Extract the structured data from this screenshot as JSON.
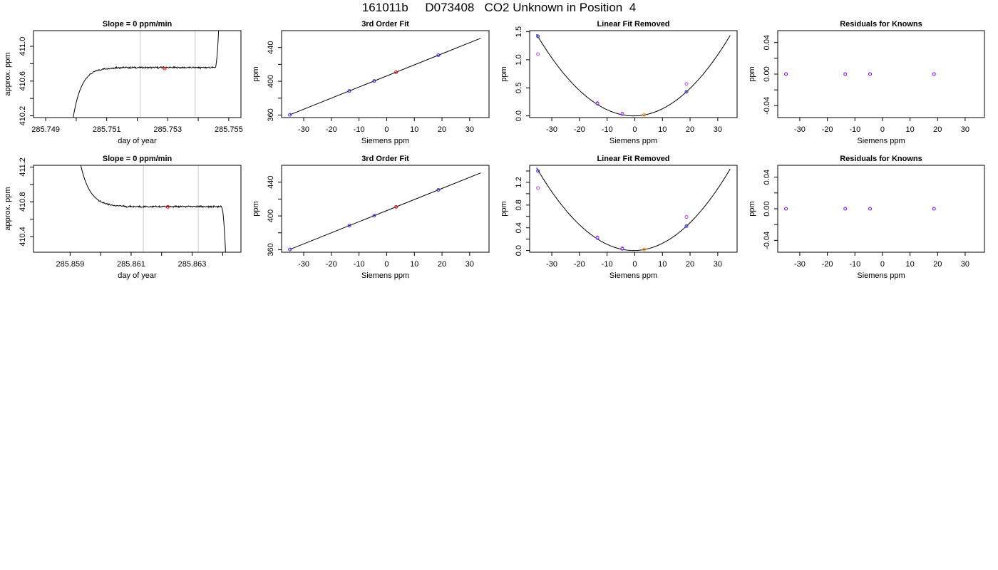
{
  "title": "161011b     D073408   CO2 Unknown in Position  4",
  "colors": {
    "blue": "#2b2bff",
    "red": "#ff0000",
    "orange": "#ff8c00",
    "magenta": "#cc44ee",
    "purple": "#7a00ff",
    "gray": "#c8c8c8",
    "line": "#000000"
  },
  "chart_data": [
    {
      "type": "line",
      "title": "Slope =  0  ppm/min",
      "xlabel": "day of year",
      "ylabel": "approx. ppm",
      "xlim": [
        285.7486,
        285.7554
      ],
      "ylim": [
        410.18,
        411.18
      ],
      "xticks": [
        285.749,
        285.75,
        285.751,
        285.752,
        285.753,
        285.754,
        285.755
      ],
      "xtick_labels": [
        "285.749",
        "",
        "285.751",
        "",
        "285.753",
        "",
        "285.755"
      ],
      "yticks": [
        410.2,
        410.4,
        410.6,
        410.8,
        411.0
      ],
      "ytick_labels": [
        "410.2",
        "",
        "410.6",
        "",
        "411.0"
      ],
      "vlines": [
        285.7521,
        285.7539
      ],
      "trace": {
        "x_start": 285.7499,
        "x_end": 285.7547,
        "rise_start": 410.18,
        "plateau": 410.755,
        "rise_len": 0.00045,
        "noise": 0.008,
        "end_rise_from": 285.75455,
        "end_value": 411.5
      },
      "marker": {
        "x": 285.7529,
        "y": 410.745,
        "color": "red"
      }
    },
    {
      "type": "scatter",
      "title": "3rd Order Fit",
      "xlabel": "Siemens ppm",
      "ylabel": "ppm",
      "xlim": [
        -38,
        37
      ],
      "ylim": [
        357,
        460
      ],
      "xticks": [
        -30,
        -20,
        -10,
        0,
        10,
        20,
        30
      ],
      "xtick_labels": [
        "-30",
        "-20",
        "-10",
        "0",
        "10",
        "20",
        "30"
      ],
      "yticks": [
        360,
        380,
        400,
        420,
        440
      ],
      "ytick_labels": [
        "360",
        "",
        "400",
        "",
        "440"
      ],
      "fit_line": {
        "x": [
          -35,
          34
        ],
        "y": [
          360.3,
          451.0
        ]
      },
      "points": [
        {
          "x": -35.0,
          "y": 360.3,
          "color": "blue"
        },
        {
          "x": -13.5,
          "y": 388.6,
          "color": "blue"
        },
        {
          "x": -4.5,
          "y": 400.4,
          "color": "blue"
        },
        {
          "x": 18.7,
          "y": 430.9,
          "color": "blue"
        },
        {
          "x": 3.4,
          "y": 410.75,
          "color": "red"
        }
      ]
    },
    {
      "type": "scatter",
      "title": "Linear Fit Removed",
      "xlabel": "Siemens ppm",
      "ylabel": "ppm",
      "xlim": [
        -38,
        37
      ],
      "ylim": [
        -0.03,
        1.52
      ],
      "xticks": [
        -30,
        -20,
        -10,
        0,
        10,
        20,
        30
      ],
      "xtick_labels": [
        "-30",
        "-20",
        "-10",
        "0",
        "10",
        "20",
        "30"
      ],
      "yticks": [
        0.0,
        0.5,
        1.0,
        1.5
      ],
      "ytick_labels": [
        "0.0",
        "0.5",
        "1.0",
        "1.5"
      ],
      "curve": {
        "a": 0.00118,
        "b": 0.0009,
        "c": 0.0,
        "x_from": -35.5,
        "x_to": 34.5
      },
      "points": [
        {
          "x": -35.0,
          "y": 1.42,
          "color": "blue"
        },
        {
          "x": -13.5,
          "y": 0.22,
          "color": "blue"
        },
        {
          "x": -4.5,
          "y": 0.03,
          "color": "blue"
        },
        {
          "x": 18.7,
          "y": 0.43,
          "color": "blue"
        },
        {
          "x": -35.0,
          "y": 1.1,
          "color": "magenta"
        },
        {
          "x": -13.5,
          "y": 0.23,
          "color": "magenta"
        },
        {
          "x": -4.5,
          "y": 0.04,
          "color": "magenta"
        },
        {
          "x": 18.7,
          "y": 0.57,
          "color": "magenta"
        },
        {
          "x": 3.4,
          "y": 0.02,
          "color": "orange"
        }
      ]
    },
    {
      "type": "scatter",
      "title": "Residuals for Knowns",
      "xlabel": "Siemens ppm",
      "ylabel": "ppm",
      "xlim": [
        -38,
        37
      ],
      "ylim": [
        -0.055,
        0.055
      ],
      "xticks": [
        -30,
        -20,
        -10,
        0,
        10,
        20,
        30
      ],
      "xtick_labels": [
        "-30",
        "-20",
        "-10",
        "0",
        "10",
        "20",
        "30"
      ],
      "yticks": [
        -0.04,
        -0.02,
        0.0,
        0.02,
        0.04
      ],
      "ytick_labels": [
        "-0.04",
        "",
        "0.00",
        "",
        "0.04"
      ],
      "points": [
        {
          "x": -35.0,
          "y": 0.0,
          "color": "purple"
        },
        {
          "x": -13.5,
          "y": 0.0,
          "color": "purple"
        },
        {
          "x": -4.5,
          "y": 0.0,
          "color": "purple"
        },
        {
          "x": 18.7,
          "y": 0.0,
          "color": "purple"
        }
      ]
    },
    {
      "type": "line",
      "title": "Slope =  0  ppm/min",
      "xlabel": "day of year",
      "ylabel": "approx. ppm",
      "xlim": [
        285.8578,
        285.8646
      ],
      "ylim": [
        410.22,
        411.22
      ],
      "xticks": [
        285.859,
        285.86,
        285.861,
        285.862,
        285.863,
        285.864
      ],
      "xtick_labels": [
        "285.859",
        "",
        "285.861",
        "",
        "285.863",
        ""
      ],
      "yticks": [
        410.4,
        410.6,
        410.8,
        411.0,
        411.2
      ],
      "ytick_labels": [
        "410.4",
        "",
        "410.8",
        "",
        "411.2"
      ],
      "vlines": [
        285.8614,
        285.8632
      ],
      "trace": {
        "x_start": 285.8593,
        "x_end": 285.8641,
        "fall_start": 411.3,
        "plateau": 410.745,
        "fall_len": 0.0005,
        "noise": 0.008,
        "end_fall_from": 285.86395,
        "end_value": 410.18
      },
      "marker": {
        "x": 285.8622,
        "y": 410.742,
        "color": "red"
      }
    },
    {
      "type": "scatter",
      "title": "3rd Order Fit",
      "xlabel": "Siemens ppm",
      "ylabel": "ppm",
      "xlim": [
        -38,
        37
      ],
      "ylim": [
        357,
        460
      ],
      "xticks": [
        -30,
        -20,
        -10,
        0,
        10,
        20,
        30
      ],
      "xtick_labels": [
        "-30",
        "-20",
        "-10",
        "0",
        "10",
        "20",
        "30"
      ],
      "yticks": [
        360,
        380,
        400,
        420,
        440
      ],
      "ytick_labels": [
        "360",
        "",
        "400",
        "",
        "440"
      ],
      "fit_line": {
        "x": [
          -35,
          34
        ],
        "y": [
          360.3,
          451.0
        ]
      },
      "points": [
        {
          "x": -35.0,
          "y": 360.3,
          "color": "blue"
        },
        {
          "x": -13.5,
          "y": 388.6,
          "color": "blue"
        },
        {
          "x": -4.5,
          "y": 400.4,
          "color": "blue"
        },
        {
          "x": 18.7,
          "y": 430.9,
          "color": "blue"
        },
        {
          "x": 3.4,
          "y": 410.74,
          "color": "red"
        }
      ]
    },
    {
      "type": "scatter",
      "title": "Linear Fit Removed",
      "xlabel": "Siemens ppm",
      "ylabel": "ppm",
      "xlim": [
        -38,
        37
      ],
      "ylim": [
        -0.03,
        1.5
      ],
      "xticks": [
        -30,
        -20,
        -10,
        0,
        10,
        20,
        30
      ],
      "xtick_labels": [
        "-30",
        "-20",
        "-10",
        "0",
        "10",
        "20",
        "30"
      ],
      "yticks": [
        0.0,
        0.2,
        0.4,
        0.6,
        0.8,
        1.0,
        1.2,
        1.4
      ],
      "ytick_labels": [
        "0.0",
        "",
        "0.4",
        "",
        "0.8",
        "",
        "1.2",
        ""
      ],
      "curve": {
        "a": 0.00118,
        "b": 0.0009,
        "c": 0.0,
        "x_from": -35.5,
        "x_to": 34.5
      },
      "points": [
        {
          "x": -35.0,
          "y": 1.4,
          "color": "blue"
        },
        {
          "x": -13.5,
          "y": 0.22,
          "color": "blue"
        },
        {
          "x": -4.5,
          "y": 0.03,
          "color": "blue"
        },
        {
          "x": 18.7,
          "y": 0.43,
          "color": "blue"
        },
        {
          "x": -35.0,
          "y": 1.1,
          "color": "magenta"
        },
        {
          "x": -13.5,
          "y": 0.23,
          "color": "magenta"
        },
        {
          "x": -4.5,
          "y": 0.04,
          "color": "magenta"
        },
        {
          "x": 18.7,
          "y": 0.59,
          "color": "magenta"
        },
        {
          "x": 3.4,
          "y": 0.02,
          "color": "orange"
        }
      ]
    },
    {
      "type": "scatter",
      "title": "Residuals for Knowns",
      "xlabel": "Siemens ppm",
      "ylabel": "ppm",
      "xlim": [
        -38,
        37
      ],
      "ylim": [
        -0.055,
        0.055
      ],
      "xticks": [
        -30,
        -20,
        -10,
        0,
        10,
        20,
        30
      ],
      "xtick_labels": [
        "-30",
        "-20",
        "-10",
        "0",
        "10",
        "20",
        "30"
      ],
      "yticks": [
        -0.04,
        -0.02,
        0.0,
        0.02,
        0.04
      ],
      "ytick_labels": [
        "-0.04",
        "",
        "0.00",
        "",
        "0.04"
      ],
      "points": [
        {
          "x": -35.0,
          "y": 0.0,
          "color": "purple"
        },
        {
          "x": -13.5,
          "y": 0.0,
          "color": "purple"
        },
        {
          "x": -4.5,
          "y": 0.0,
          "color": "purple"
        },
        {
          "x": 18.7,
          "y": 0.0,
          "color": "purple"
        }
      ]
    }
  ]
}
